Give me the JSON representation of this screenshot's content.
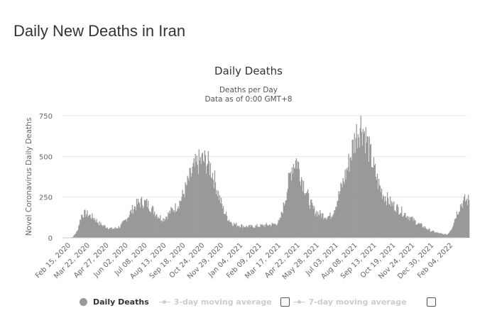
{
  "page": {
    "title": "Daily New Deaths in Iran"
  },
  "chart_data": {
    "type": "bar",
    "title": "Daily Deaths",
    "subtitle_lines": [
      "Deaths per Day",
      "Data as of 0:00 GMT+8"
    ],
    "ylabel": "Novel Coronavirus Daily Deaths",
    "xlabel": "",
    "ylim": [
      0,
      750
    ],
    "yticks": [
      0,
      250,
      500,
      750
    ],
    "grid": true,
    "xrange": [
      "2020-02-15",
      "2022-02-20"
    ],
    "xtick_labels": [
      "Feb 15, 2020",
      "Mar 22, 2020",
      "Apr 27, 2020",
      "Jun 02, 2020",
      "Jul 08, 2020",
      "Aug 13, 2020",
      "Sep 18, 2020",
      "Oct 24, 2020",
      "Nov 29, 2020",
      "Jan 04, 2021",
      "Feb 09, 2021",
      "Mar 17, 2021",
      "Apr 22, 2021",
      "May 28, 2021",
      "Jul 03, 2021",
      "Aug 08, 2021",
      "Sep 13, 2021",
      "Oct 19, 2021",
      "Nov 24, 2021",
      "Dec 30, 2021",
      "Feb 04, 2022"
    ],
    "bar_color": "#999999",
    "series": [
      {
        "name": "Daily Deaths",
        "note": "approximate values sampled roughly every 9 days from the plotted bars",
        "values": [
          0,
          5,
          40,
          140,
          150,
          135,
          120,
          90,
          75,
          65,
          55,
          60,
          70,
          100,
          140,
          180,
          210,
          220,
          215,
          190,
          160,
          130,
          115,
          140,
          170,
          190,
          230,
          290,
          360,
          420,
          460,
          475,
          470,
          430,
          350,
          250,
          170,
          120,
          90,
          80,
          75,
          70,
          68,
          70,
          72,
          75,
          78,
          80,
          85,
          100,
          200,
          330,
          450,
          480,
          380,
          300,
          220,
          170,
          150,
          140,
          130,
          135,
          200,
          280,
          360,
          450,
          560,
          650,
          700,
          620,
          520,
          420,
          330,
          270,
          240,
          210,
          190,
          170,
          150,
          130,
          110,
          90,
          75,
          60,
          45,
          35,
          28,
          22,
          20,
          60,
          140,
          200,
          230,
          230
        ]
      }
    ],
    "legend": {
      "placement": "bottom",
      "items": [
        {
          "label": "Daily Deaths",
          "active": true
        },
        {
          "label": "3-day moving average",
          "active": false,
          "checked": false
        },
        {
          "label": "7-day moving average",
          "active": false,
          "checked": false
        }
      ]
    }
  }
}
